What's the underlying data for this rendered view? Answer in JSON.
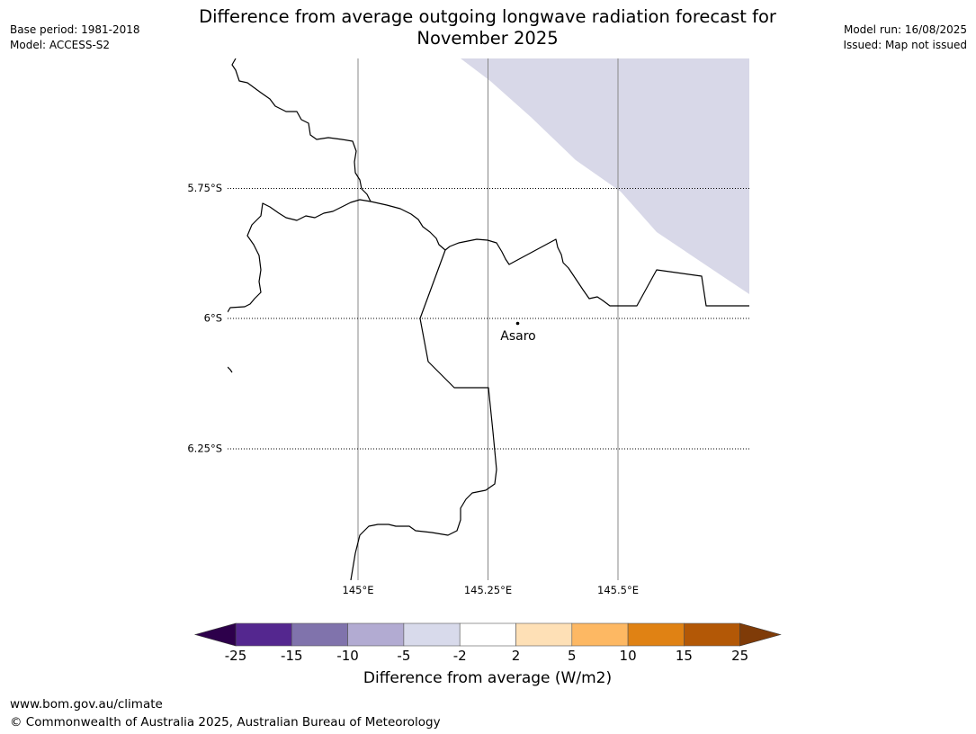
{
  "header": {
    "title_line1": "Difference from average outgoing longwave radiation forecast for",
    "title_line2": "November 2025",
    "base_period": "Base period: 1981-2018",
    "model": "Model: ACCESS-S2",
    "model_run": "Model run: 16/08/2025",
    "issued": "Issued: Map not issued"
  },
  "map": {
    "lat_labels": [
      "5.75°S",
      "6°S",
      "6.25°S"
    ],
    "lon_labels": [
      "145°E",
      "145.25°E",
      "145.5°E"
    ],
    "place": {
      "name": "Asaro"
    },
    "shaded_anomaly_category": "-5 to -2",
    "colors": {
      "anomaly_fill": "#d8d8e8",
      "coast_line": "#000000",
      "meridian": "#888888"
    }
  },
  "colorbar": {
    "label": "Difference from average (W/m2)",
    "ticks": [
      "-25",
      "-15",
      "-10",
      "-5",
      "-2",
      "2",
      "5",
      "10",
      "15",
      "25"
    ],
    "colors": [
      "#54278f",
      "#8073ac",
      "#b2abd2",
      "#d8daeb",
      "#ffffff",
      "#fee0b6",
      "#fdb863",
      "#e08214",
      "#b35806"
    ],
    "extend_low_color": "#2d004b",
    "extend_high_color": "#7f3b08"
  },
  "footer": {
    "url": "www.bom.gov.au/climate",
    "copyright": "© Commonwealth of Australia 2025, Australian Bureau of Meteorology"
  }
}
